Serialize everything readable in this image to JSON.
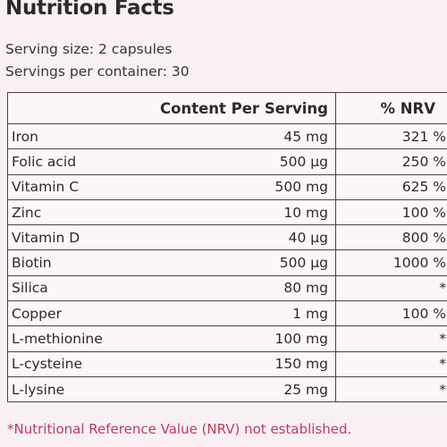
{
  "title": "Nutrition Facts",
  "serving_size": "Serving size: 2 capsules",
  "servings_per_container": "Servings per container: 30",
  "table": {
    "header": [
      "Content Per Serving",
      "% NRV"
    ],
    "rows": [
      [
        "Iron",
        "45 mg",
        "321 %"
      ],
      [
        "Folic acid",
        "500 µg",
        "250 %"
      ],
      [
        "Vitamin C",
        "500 mg",
        "625 %"
      ],
      [
        "Zinc",
        "10 mg",
        "100 %"
      ],
      [
        "Vitamin D",
        "40  µg",
        "800 %"
      ],
      [
        "Biotin",
        "500 µg",
        "1000 %"
      ],
      [
        "Silica",
        "80 mg",
        "*"
      ],
      [
        "Copper",
        "1 mg",
        "100 %"
      ],
      [
        "L-methionine",
        "100 mg",
        "*"
      ],
      [
        "L-cysteine",
        "150 mg",
        "*"
      ],
      [
        "L-lysine",
        "25 mg",
        "*"
      ]
    ]
  },
  "footnote": "*Nutritional Reference Value (NRV) not established."
}
